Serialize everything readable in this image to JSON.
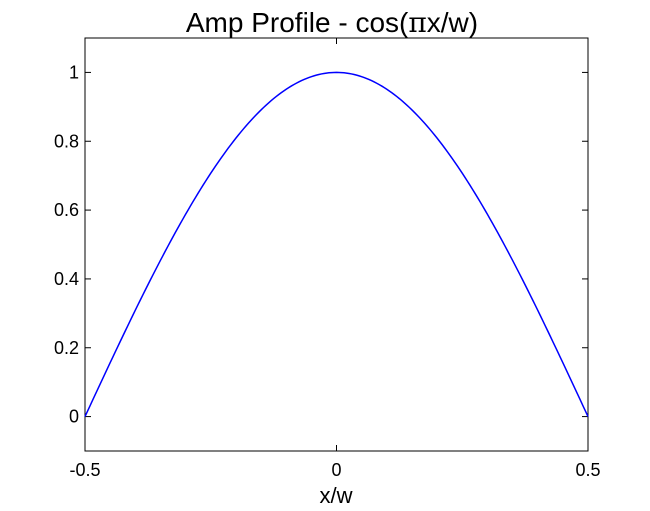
{
  "chart_data": {
    "type": "line",
    "title_main": "Amp Profile - cos(",
    "title_pi": "π",
    "title_rest": "x/w)",
    "xlabel": "x/w",
    "ylabel": "",
    "xlim": [
      -0.5,
      0.5
    ],
    "ylim": [
      -0.1,
      1.1
    ],
    "grid": false,
    "x_ticks": [
      -0.5,
      0,
      0.5
    ],
    "x_tick_labels": [
      "-0.5",
      "0",
      "0.5"
    ],
    "y_ticks": [
      0,
      0.2,
      0.4,
      0.6,
      0.8,
      1
    ],
    "y_tick_labels": [
      "0",
      "0.2",
      "0.4",
      "0.6",
      "0.8",
      "1"
    ],
    "series": [
      {
        "color": "#0000ff",
        "x": [
          -0.5,
          -0.45,
          -0.4,
          -0.35,
          -0.3,
          -0.25,
          -0.2,
          -0.15,
          -0.1,
          -0.05,
          0,
          0.05,
          0.1,
          0.15,
          0.2,
          0.25,
          0.3,
          0.35,
          0.4,
          0.45,
          0.5
        ],
        "y": [
          0,
          0.156,
          0.309,
          0.454,
          0.588,
          0.707,
          0.809,
          0.891,
          0.951,
          0.988,
          1,
          0.988,
          0.951,
          0.891,
          0.809,
          0.707,
          0.588,
          0.454,
          0.309,
          0.156,
          0
        ]
      }
    ]
  }
}
